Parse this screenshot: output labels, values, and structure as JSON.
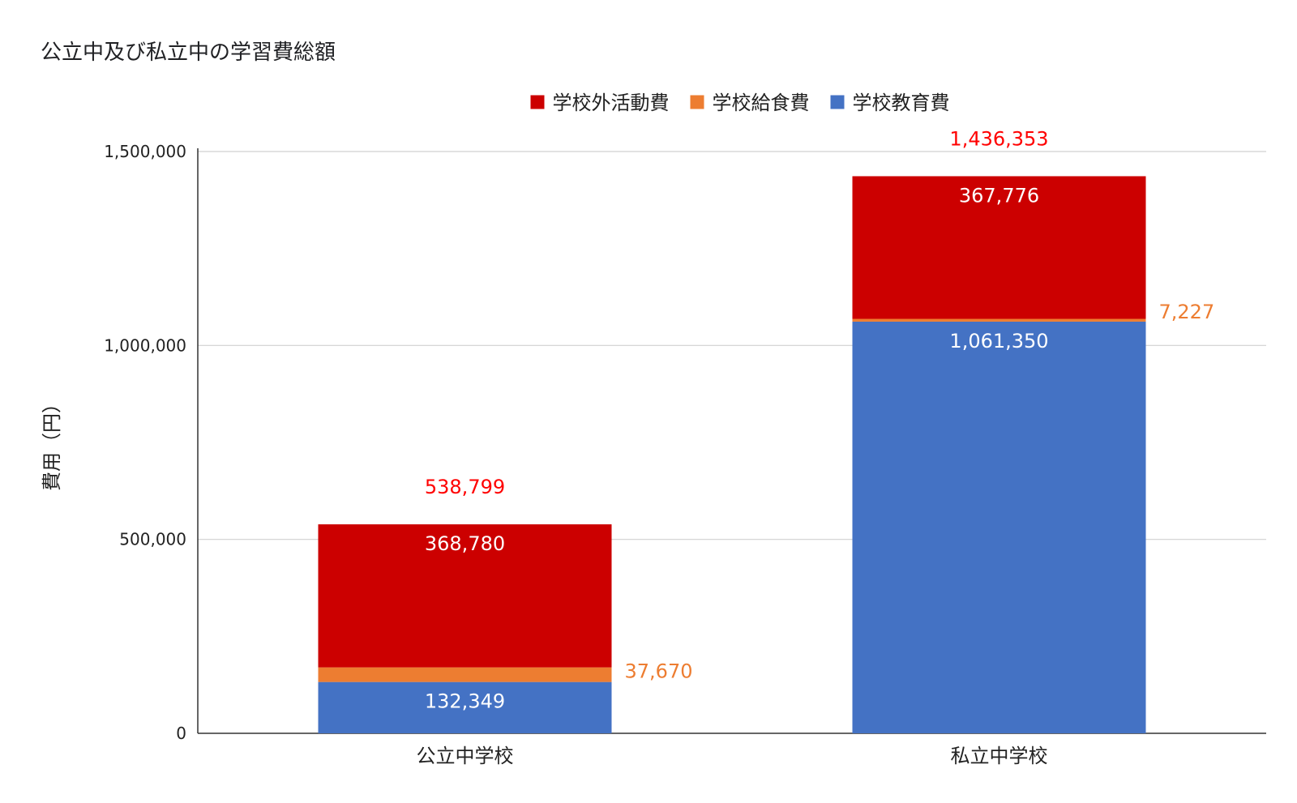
{
  "chart_data": {
    "type": "bar",
    "stacked": true,
    "title": "公立中及び私立中の学習費総額",
    "xlabel": "",
    "ylabel": "費用（円）",
    "ylim": [
      0,
      1500000
    ],
    "yticks": [
      0,
      500000,
      1000000,
      1500000
    ],
    "ytick_labels": [
      "0",
      "500,000",
      "1,000,000",
      "1,500,000"
    ],
    "grid": true,
    "legend_position": "top",
    "categories": [
      "公立中学校",
      "私立中学校"
    ],
    "series": [
      {
        "name": "学校教育費",
        "color": "#4472c4",
        "values": [
          132349,
          1061350
        ],
        "labels": [
          "132,349",
          "1,061,350"
        ]
      },
      {
        "name": "学校給食費",
        "color": "#ed7d31",
        "values": [
          37670,
          7227
        ],
        "labels": [
          "37,670",
          "7,227"
        ]
      },
      {
        "name": "学校外活動費",
        "color": "#cc0000",
        "values": [
          368780,
          367776
        ],
        "labels": [
          "368,780",
          "367,776"
        ]
      }
    ],
    "legend_order": [
      "学校外活動費",
      "学校給食費",
      "学校教育費"
    ],
    "totals": [
      538799,
      1436353
    ],
    "total_labels": [
      "538,799",
      "1,436,353"
    ],
    "total_label_color": "#ff0000"
  }
}
